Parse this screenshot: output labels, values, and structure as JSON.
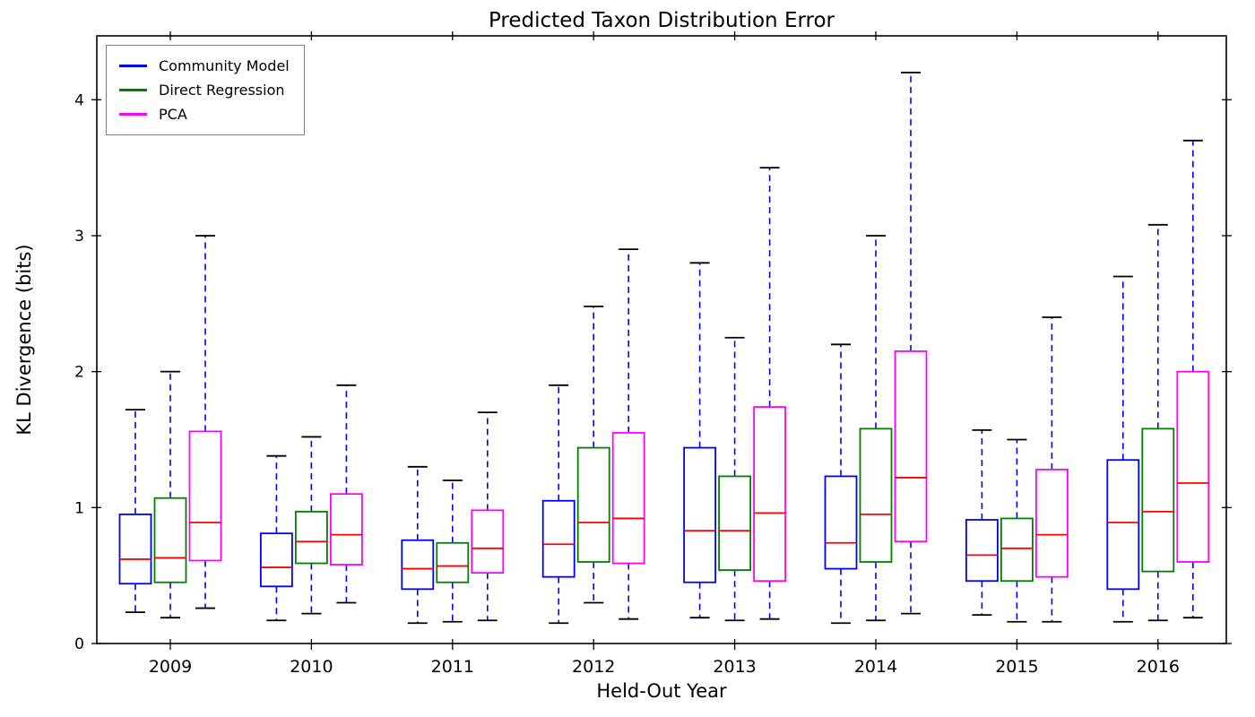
{
  "chart_data": {
    "type": "boxplot",
    "title": "Predicted Taxon Distribution Error",
    "xlabel": "Held-Out Year",
    "ylabel": "KL Divergence (bits)",
    "categories": [
      "2009",
      "2010",
      "2011",
      "2012",
      "2013",
      "2014",
      "2015",
      "2016"
    ],
    "yticks": [
      0,
      1,
      2,
      3,
      4
    ],
    "ylim": [
      0,
      4.47
    ],
    "grid": false,
    "legend_position": "upper left",
    "box_value_order": [
      "whisker_low",
      "q1",
      "median",
      "q3",
      "whisker_high"
    ],
    "style": {
      "median_color": "#ff0000",
      "whisker_color": "#0000ff",
      "cap_color": "#000000",
      "frame_color": "#000000",
      "background": "#ffffff"
    },
    "series": [
      {
        "name": "Community Model",
        "color": "#0000ff",
        "boxes": [
          [
            0.23,
            0.44,
            0.62,
            0.95,
            1.72
          ],
          [
            0.17,
            0.42,
            0.56,
            0.81,
            1.38
          ],
          [
            0.15,
            0.4,
            0.55,
            0.76,
            1.3
          ],
          [
            0.15,
            0.49,
            0.73,
            1.05,
            1.9
          ],
          [
            0.19,
            0.45,
            0.83,
            1.44,
            2.8
          ],
          [
            0.15,
            0.55,
            0.74,
            1.23,
            2.2
          ],
          [
            0.21,
            0.46,
            0.65,
            0.91,
            1.57
          ],
          [
            0.16,
            0.4,
            0.89,
            1.35,
            2.7
          ]
        ]
      },
      {
        "name": "Direct Regression",
        "color": "#008000",
        "boxes": [
          [
            0.19,
            0.45,
            0.63,
            1.07,
            2.0
          ],
          [
            0.22,
            0.59,
            0.75,
            0.97,
            1.52
          ],
          [
            0.16,
            0.45,
            0.57,
            0.74,
            1.2
          ],
          [
            0.3,
            0.6,
            0.89,
            1.44,
            2.48
          ],
          [
            0.17,
            0.54,
            0.83,
            1.23,
            2.25
          ],
          [
            0.17,
            0.6,
            0.95,
            1.58,
            3.0
          ],
          [
            0.16,
            0.46,
            0.7,
            0.92,
            1.5
          ],
          [
            0.17,
            0.53,
            0.97,
            1.58,
            3.08
          ]
        ]
      },
      {
        "name": "PCA",
        "color": "#ff00ff",
        "boxes": [
          [
            0.26,
            0.61,
            0.89,
            1.56,
            3.0
          ],
          [
            0.3,
            0.58,
            0.8,
            1.1,
            1.9
          ],
          [
            0.17,
            0.52,
            0.7,
            0.98,
            1.7
          ],
          [
            0.18,
            0.59,
            0.92,
            1.55,
            2.9
          ],
          [
            0.18,
            0.46,
            0.96,
            1.74,
            3.5
          ],
          [
            0.22,
            0.75,
            1.22,
            2.15,
            4.2
          ],
          [
            0.16,
            0.49,
            0.8,
            1.28,
            2.4
          ],
          [
            0.19,
            0.6,
            1.18,
            2.0,
            3.7
          ]
        ]
      }
    ]
  }
}
